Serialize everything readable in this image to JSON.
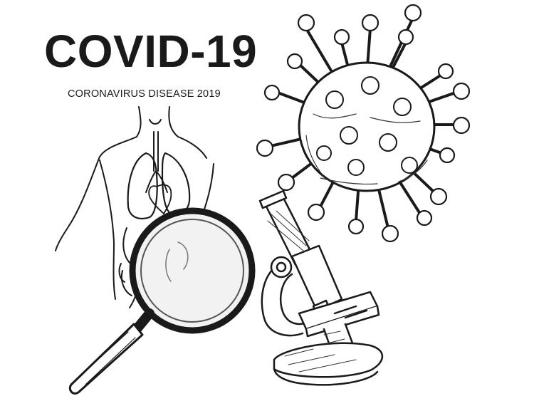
{
  "title": "COVID-19",
  "subtitle": "CORONAVIRUS DISEASE 2019",
  "colors": {
    "ink": "#1a1a1a",
    "background": "#ffffff",
    "lens": "#f2f2f2"
  },
  "illustrations": [
    "human-torso-lungs-icon",
    "magnifying-glass-icon",
    "coronavirus-icon",
    "microscope-icon"
  ]
}
